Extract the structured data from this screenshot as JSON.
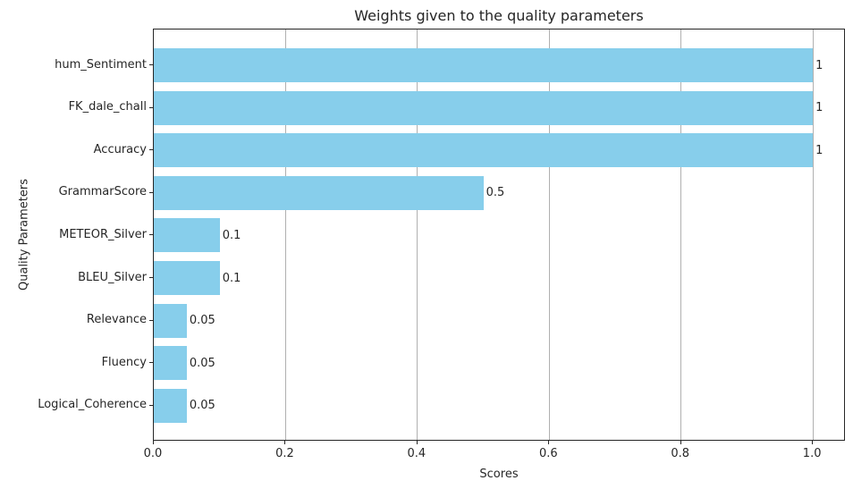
{
  "chart_data": {
    "type": "bar",
    "orientation": "horizontal",
    "title": "Weights given to the quality parameters",
    "xlabel": "Scores",
    "ylabel": "Quality Parameters",
    "categories": [
      "hum_Sentiment",
      "FK_dale_chall",
      "Accuracy",
      "GrammarScore",
      "METEOR_Silver",
      "BLEU_Silver",
      "Relevance",
      "Fluency",
      "Logical_Coherence"
    ],
    "values": [
      1,
      1,
      1,
      0.5,
      0.1,
      0.1,
      0.05,
      0.05,
      0.05
    ],
    "value_labels": [
      "1",
      "1",
      "1",
      "0.5",
      "0.1",
      "0.1",
      "0.05",
      "0.05",
      "0.05"
    ],
    "x_ticks": [
      0.0,
      0.2,
      0.4,
      0.6,
      0.8,
      1.0
    ],
    "x_tick_labels": [
      "0.0",
      "0.2",
      "0.4",
      "0.6",
      "0.8",
      "1.0"
    ],
    "xlim": [
      0,
      1.05
    ],
    "grid": true,
    "legend": false,
    "bar_color": "#87CEEB",
    "grid_color": "#b0b0b0",
    "axis_color": "#262626"
  }
}
